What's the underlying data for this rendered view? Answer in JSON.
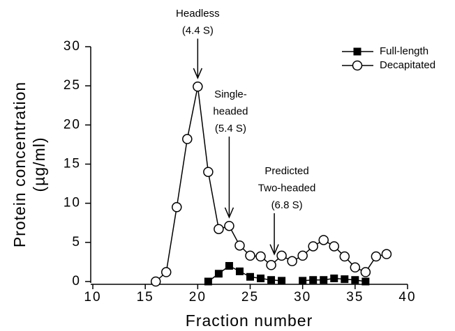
{
  "chart_data": {
    "type": "line",
    "x_label": "Fraction number",
    "y_label": [
      "Protein concentration",
      "(µg/ml)"
    ],
    "x": [
      16,
      17,
      18,
      19,
      20,
      21,
      22,
      23,
      24,
      25,
      26,
      27,
      28,
      29,
      30,
      31,
      32,
      33,
      34,
      35,
      36,
      37,
      38
    ],
    "series": [
      {
        "name": "Full-length",
        "color": "#000000",
        "marker": "square",
        "values": [
          null,
          null,
          null,
          null,
          null,
          0,
          1,
          2,
          1.3,
          0.6,
          0.4,
          0.2,
          0.1,
          null,
          0.1,
          0.2,
          0.2,
          0.4,
          0.3,
          0.2,
          0,
          null,
          null
        ]
      },
      {
        "name": "Decapitated",
        "color": "#000000",
        "marker": "circle",
        "values": [
          0,
          1.2,
          9.5,
          18.2,
          24.9,
          14,
          6.7,
          7.1,
          4.6,
          3.3,
          3.2,
          2.1,
          3.3,
          2.6,
          3.3,
          4.5,
          5.3,
          4.5,
          3.2,
          1.8,
          1.2,
          3.2,
          3.5
        ]
      }
    ],
    "xlim": [
      10,
      40
    ],
    "xticks": [
      10,
      15,
      20,
      25,
      30,
      35,
      40
    ],
    "ylim": [
      0,
      30
    ],
    "yticks": [
      0,
      5,
      10,
      15,
      20,
      25,
      30
    ],
    "legend": "top-right",
    "annotations": [
      {
        "lines": [
          "Headless",
          "(4.4 S)"
        ],
        "x": 20,
        "y": 26
      },
      {
        "lines": [
          "Single-",
          "headed",
          "(5.4 S)"
        ],
        "x": 23,
        "y": 8.2
      },
      {
        "lines": [
          "Predicted",
          "Two-headed",
          "(6.8 S)"
        ],
        "x": 27.3,
        "y": 3.5
      }
    ]
  }
}
